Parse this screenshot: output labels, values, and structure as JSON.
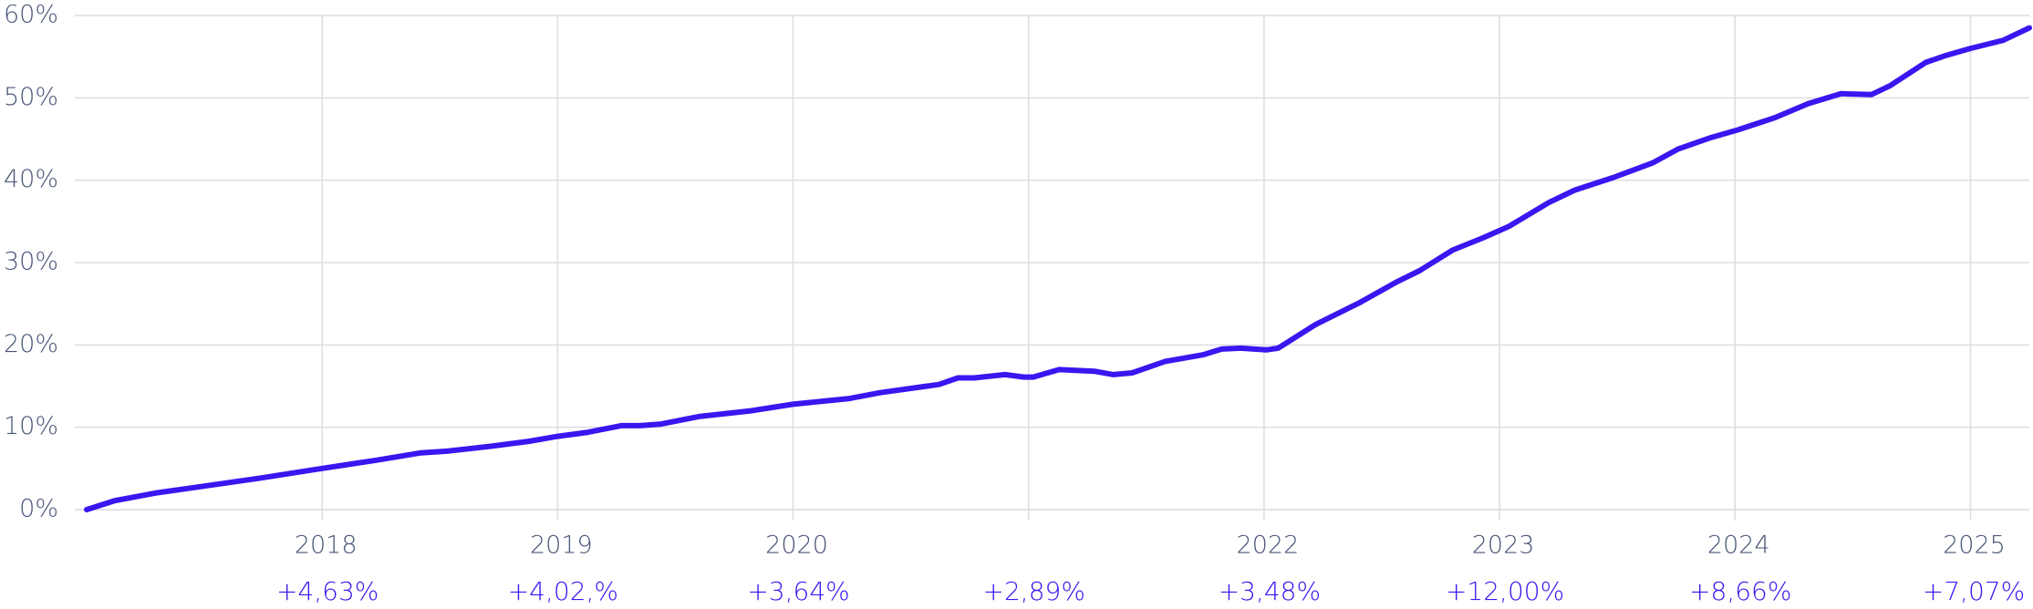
{
  "chart_data": {
    "type": "line",
    "x": [
      2017.0,
      2017.12,
      2017.29,
      2017.51,
      2017.73,
      2018.0,
      2018.23,
      2018.42,
      2018.53,
      2018.72,
      2018.88,
      2019.0,
      2019.13,
      2019.27,
      2019.35,
      2019.44,
      2019.6,
      2019.82,
      2020.0,
      2020.24,
      2020.37,
      2020.62,
      2020.7,
      2020.77,
      2020.9,
      2020.98,
      2021.02,
      2021.13,
      2021.28,
      2021.36,
      2021.44,
      2021.58,
      2021.74,
      2021.82,
      2021.9,
      2022.01,
      2022.06,
      2022.22,
      2022.41,
      2022.56,
      2022.66,
      2022.8,
      2022.93,
      2023.04,
      2023.21,
      2023.32,
      2023.48,
      2023.65,
      2023.76,
      2023.9,
      2024.01,
      2024.17,
      2024.31,
      2024.45,
      2024.58,
      2024.66,
      2024.81,
      2024.89,
      2025.0,
      2025.14,
      2025.25
    ],
    "series": [
      {
        "color": "#3a16f0",
        "values": [
          0,
          1.1,
          2.0,
          2.9,
          3.8,
          5.0,
          6.0,
          6.9,
          7.1,
          7.7,
          8.3,
          8.9,
          9.4,
          10.2,
          10.2,
          10.4,
          11.3,
          12.0,
          12.8,
          13.5,
          14.2,
          15.2,
          16.0,
          16.0,
          16.4,
          16.1,
          16.1,
          17.0,
          16.8,
          16.4,
          16.6,
          18.0,
          18.8,
          19.5,
          19.6,
          19.4,
          19.6,
          22.5,
          25.2,
          27.6,
          29.0,
          31.5,
          33.0,
          34.4,
          37.3,
          38.8,
          40.3,
          42.1,
          43.8,
          45.2,
          46.1,
          47.6,
          49.3,
          50.5,
          50.4,
          51.5,
          54.3,
          55.1,
          56.0,
          57.0,
          58.5
        ]
      }
    ],
    "xlim": [
      2017.0,
      2025.25
    ],
    "xticks": [
      2018,
      2019,
      2020,
      {
        "value": 2021,
        "label": null
      },
      2022,
      2023,
      2024,
      2025
    ],
    "annual_changes": [
      "+4,63%",
      "+4,02,%",
      "+3,64%",
      "+2,89%",
      "+3,48%",
      "+12,00%",
      "+8,66%",
      "+7,07%"
    ],
    "ylim": [
      0,
      60
    ],
    "yticks": [
      {
        "value": 0,
        "label": "0%"
      },
      {
        "value": 10,
        "label": "10%"
      },
      {
        "value": 20,
        "label": "20%"
      },
      {
        "value": 30,
        "label": "30%"
      },
      {
        "value": 40,
        "label": "40%"
      },
      {
        "value": 50,
        "label": "50%"
      },
      {
        "value": 60,
        "label": "60%"
      }
    ],
    "grid": true
  }
}
